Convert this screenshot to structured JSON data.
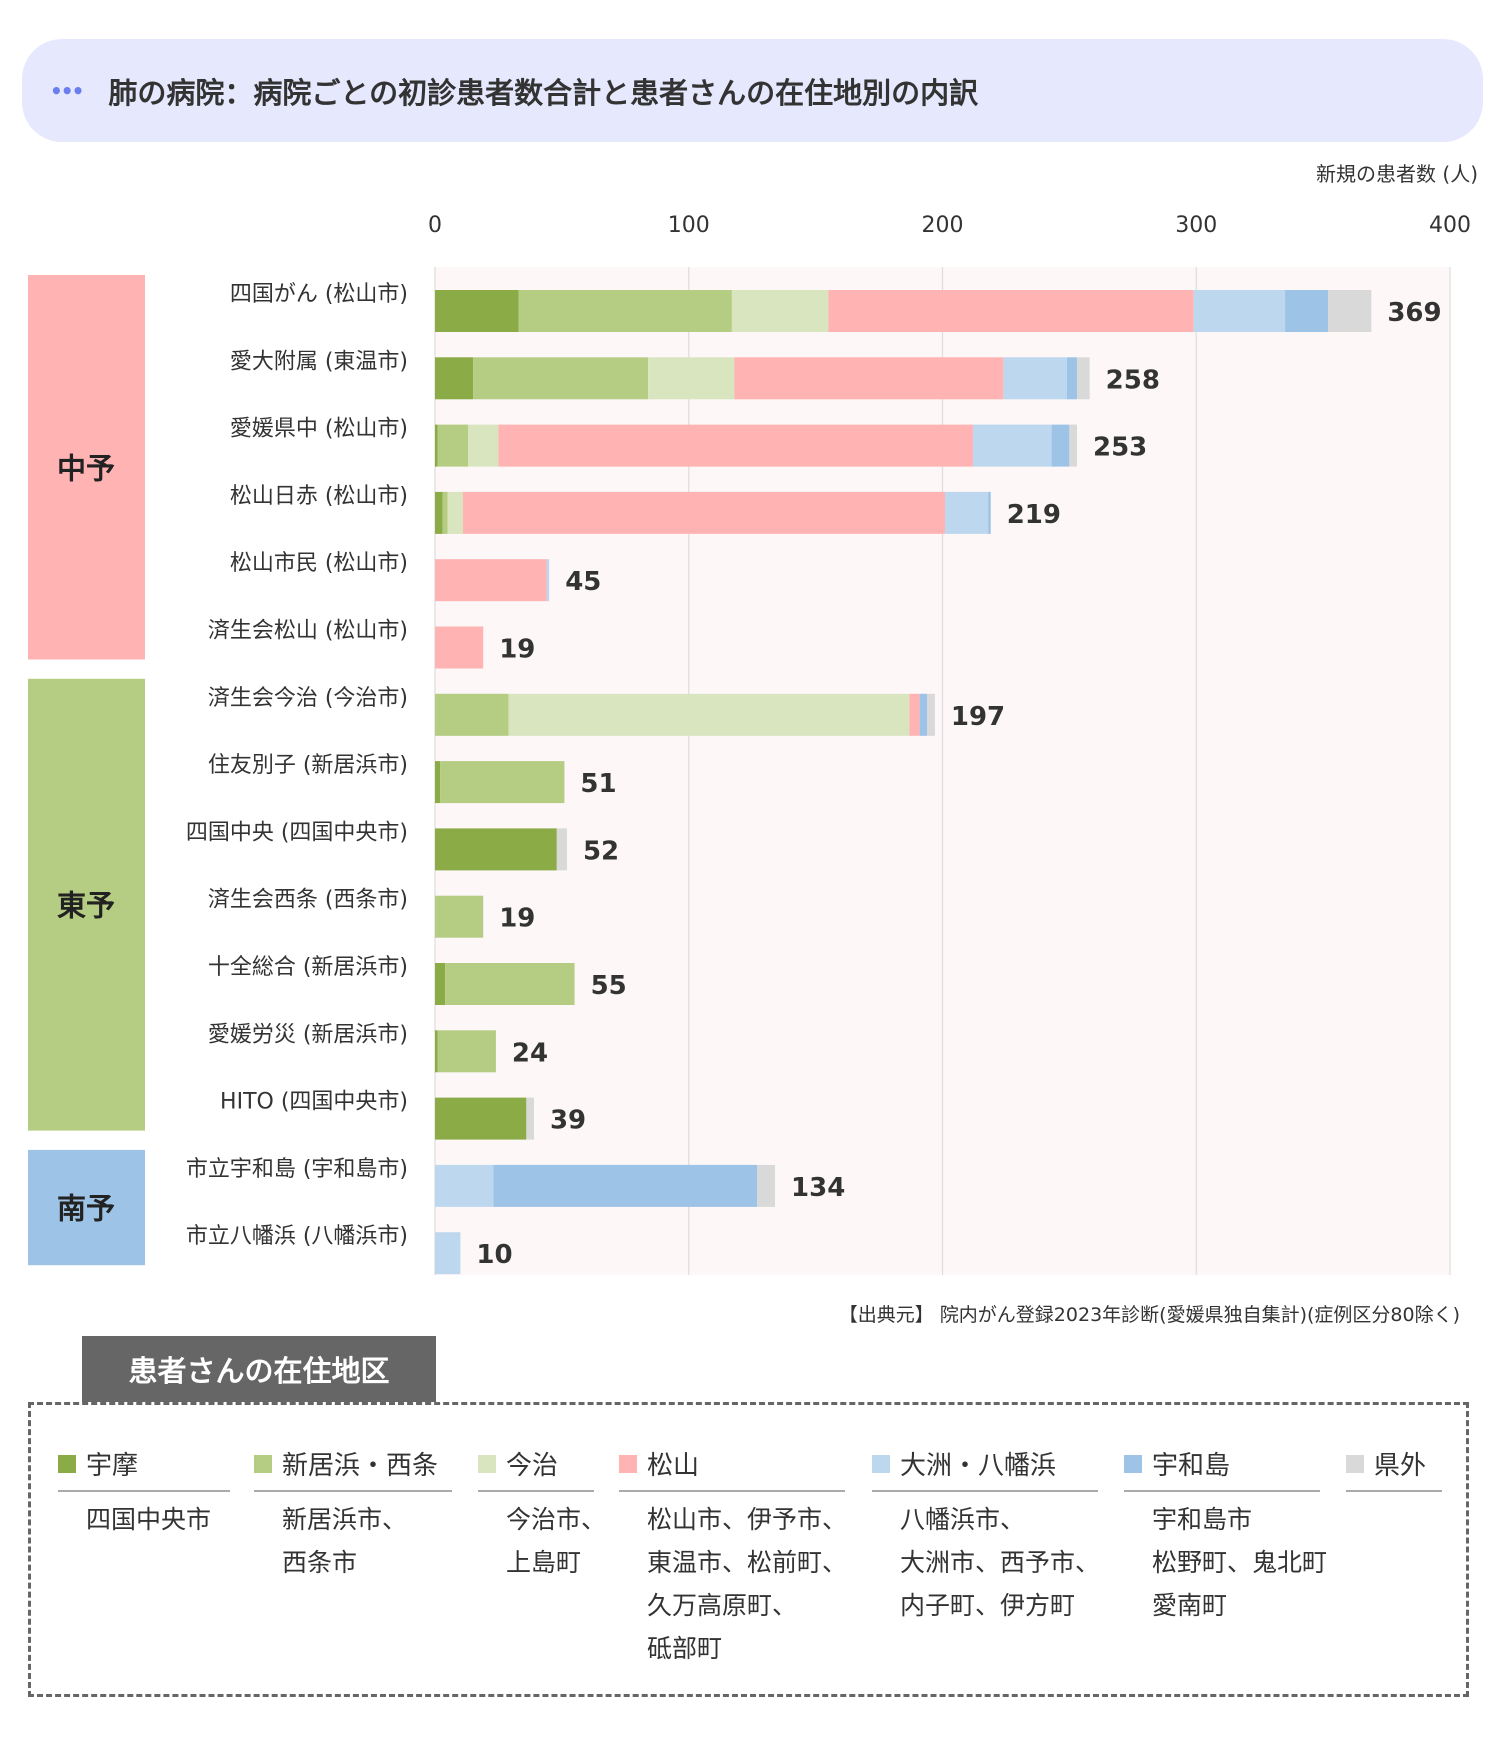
{
  "title": "肺の病院：病院ごとの初診患者数合計と患者さんの在住地別の内訳",
  "unit_label": "新規の患者数 (人)",
  "source": "【出典元】 院内がん登録2023年診断(愛媛県独自集計)(症例区分80除く)",
  "legend_title": "患者さんの在住地区",
  "chart_data": {
    "type": "bar",
    "orientation": "horizontal",
    "stacked": true,
    "xlim": [
      0,
      400
    ],
    "xticks": [
      0,
      100,
      200,
      300,
      400
    ],
    "grid": true,
    "categories": [
      "四国がん (松山市)",
      "愛大附属 (東温市)",
      "愛媛県中 (松山市)",
      "松山日赤 (松山市)",
      "松山市民 (松山市)",
      "済生会松山 (松山市)",
      "済生会今治 (今治市)",
      "住友別子 (新居浜市)",
      "四国中央 (四国中央市)",
      "済生会西条 (西条市)",
      "十全総合 (新居浜市)",
      "愛媛労災 (新居浜市)",
      "HITO (四国中央市)",
      "市立宇和島 (宇和島市)",
      "市立八幡浜 (八幡浜市)"
    ],
    "totals": [
      369,
      258,
      253,
      219,
      45,
      19,
      197,
      51,
      52,
      19,
      55,
      24,
      39,
      134,
      10
    ],
    "groups": [
      {
        "name": "中予",
        "color": "#ffb3b3",
        "rows": [
          0,
          5
        ]
      },
      {
        "name": "東予",
        "color": "#b5cc83",
        "rows": [
          6,
          12
        ]
      },
      {
        "name": "南予",
        "color": "#9dc3e6",
        "rows": [
          13,
          14
        ]
      }
    ],
    "series": [
      {
        "name": "宇摩",
        "color": "#8aab45",
        "values": [
          33,
          15,
          1,
          3,
          0,
          0,
          0,
          2,
          48,
          0,
          4,
          1,
          36,
          0,
          0
        ]
      },
      {
        "name": "新居浜・西条",
        "color": "#b5cc83",
        "values": [
          84,
          69,
          12,
          2,
          0,
          0,
          29,
          49,
          0,
          19,
          51,
          23,
          0,
          0,
          0
        ]
      },
      {
        "name": "今治",
        "color": "#d9e5bf",
        "values": [
          38,
          34,
          12,
          6,
          0,
          0,
          158,
          0,
          0,
          0,
          0,
          0,
          0,
          0,
          0
        ]
      },
      {
        "name": "松山",
        "color": "#ffb3b3",
        "values": [
          144,
          106,
          187,
          190,
          44,
          19,
          4,
          0,
          0,
          0,
          0,
          0,
          0,
          0,
          0
        ]
      },
      {
        "name": "大洲・八幡浜",
        "color": "#bdd7ee",
        "values": [
          36,
          25,
          31,
          17,
          1,
          0,
          0,
          0,
          0,
          0,
          0,
          0,
          0,
          23,
          10
        ]
      },
      {
        "name": "宇和島",
        "color": "#9dc3e6",
        "values": [
          17,
          4,
          7,
          1,
          0,
          0,
          3,
          0,
          0,
          0,
          0,
          0,
          0,
          104,
          0
        ]
      },
      {
        "name": "県外",
        "color": "#d9d9d9",
        "values": [
          17,
          5,
          3,
          0,
          0,
          0,
          3,
          0,
          4,
          0,
          0,
          0,
          3,
          7,
          0
        ]
      }
    ]
  },
  "legend": [
    {
      "name": "宇摩",
      "areas": [
        "四国中央市"
      ]
    },
    {
      "name": "新居浜・西条",
      "areas": [
        "新居浜市、",
        "西条市"
      ]
    },
    {
      "name": "今治",
      "areas": [
        "今治市、",
        "上島町"
      ]
    },
    {
      "name": "松山",
      "areas": [
        "松山市、伊予市、",
        "東温市、松前町、",
        "久万高原町、",
        "砥部町"
      ]
    },
    {
      "name": "大洲・八幡浜",
      "areas": [
        "八幡浜市、",
        "大洲市、西予市、",
        "内子町、伊方町"
      ]
    },
    {
      "name": "宇和島",
      "areas": [
        "宇和島市",
        "松野町、鬼北町",
        "愛南町"
      ]
    },
    {
      "name": "県外",
      "areas": []
    }
  ]
}
